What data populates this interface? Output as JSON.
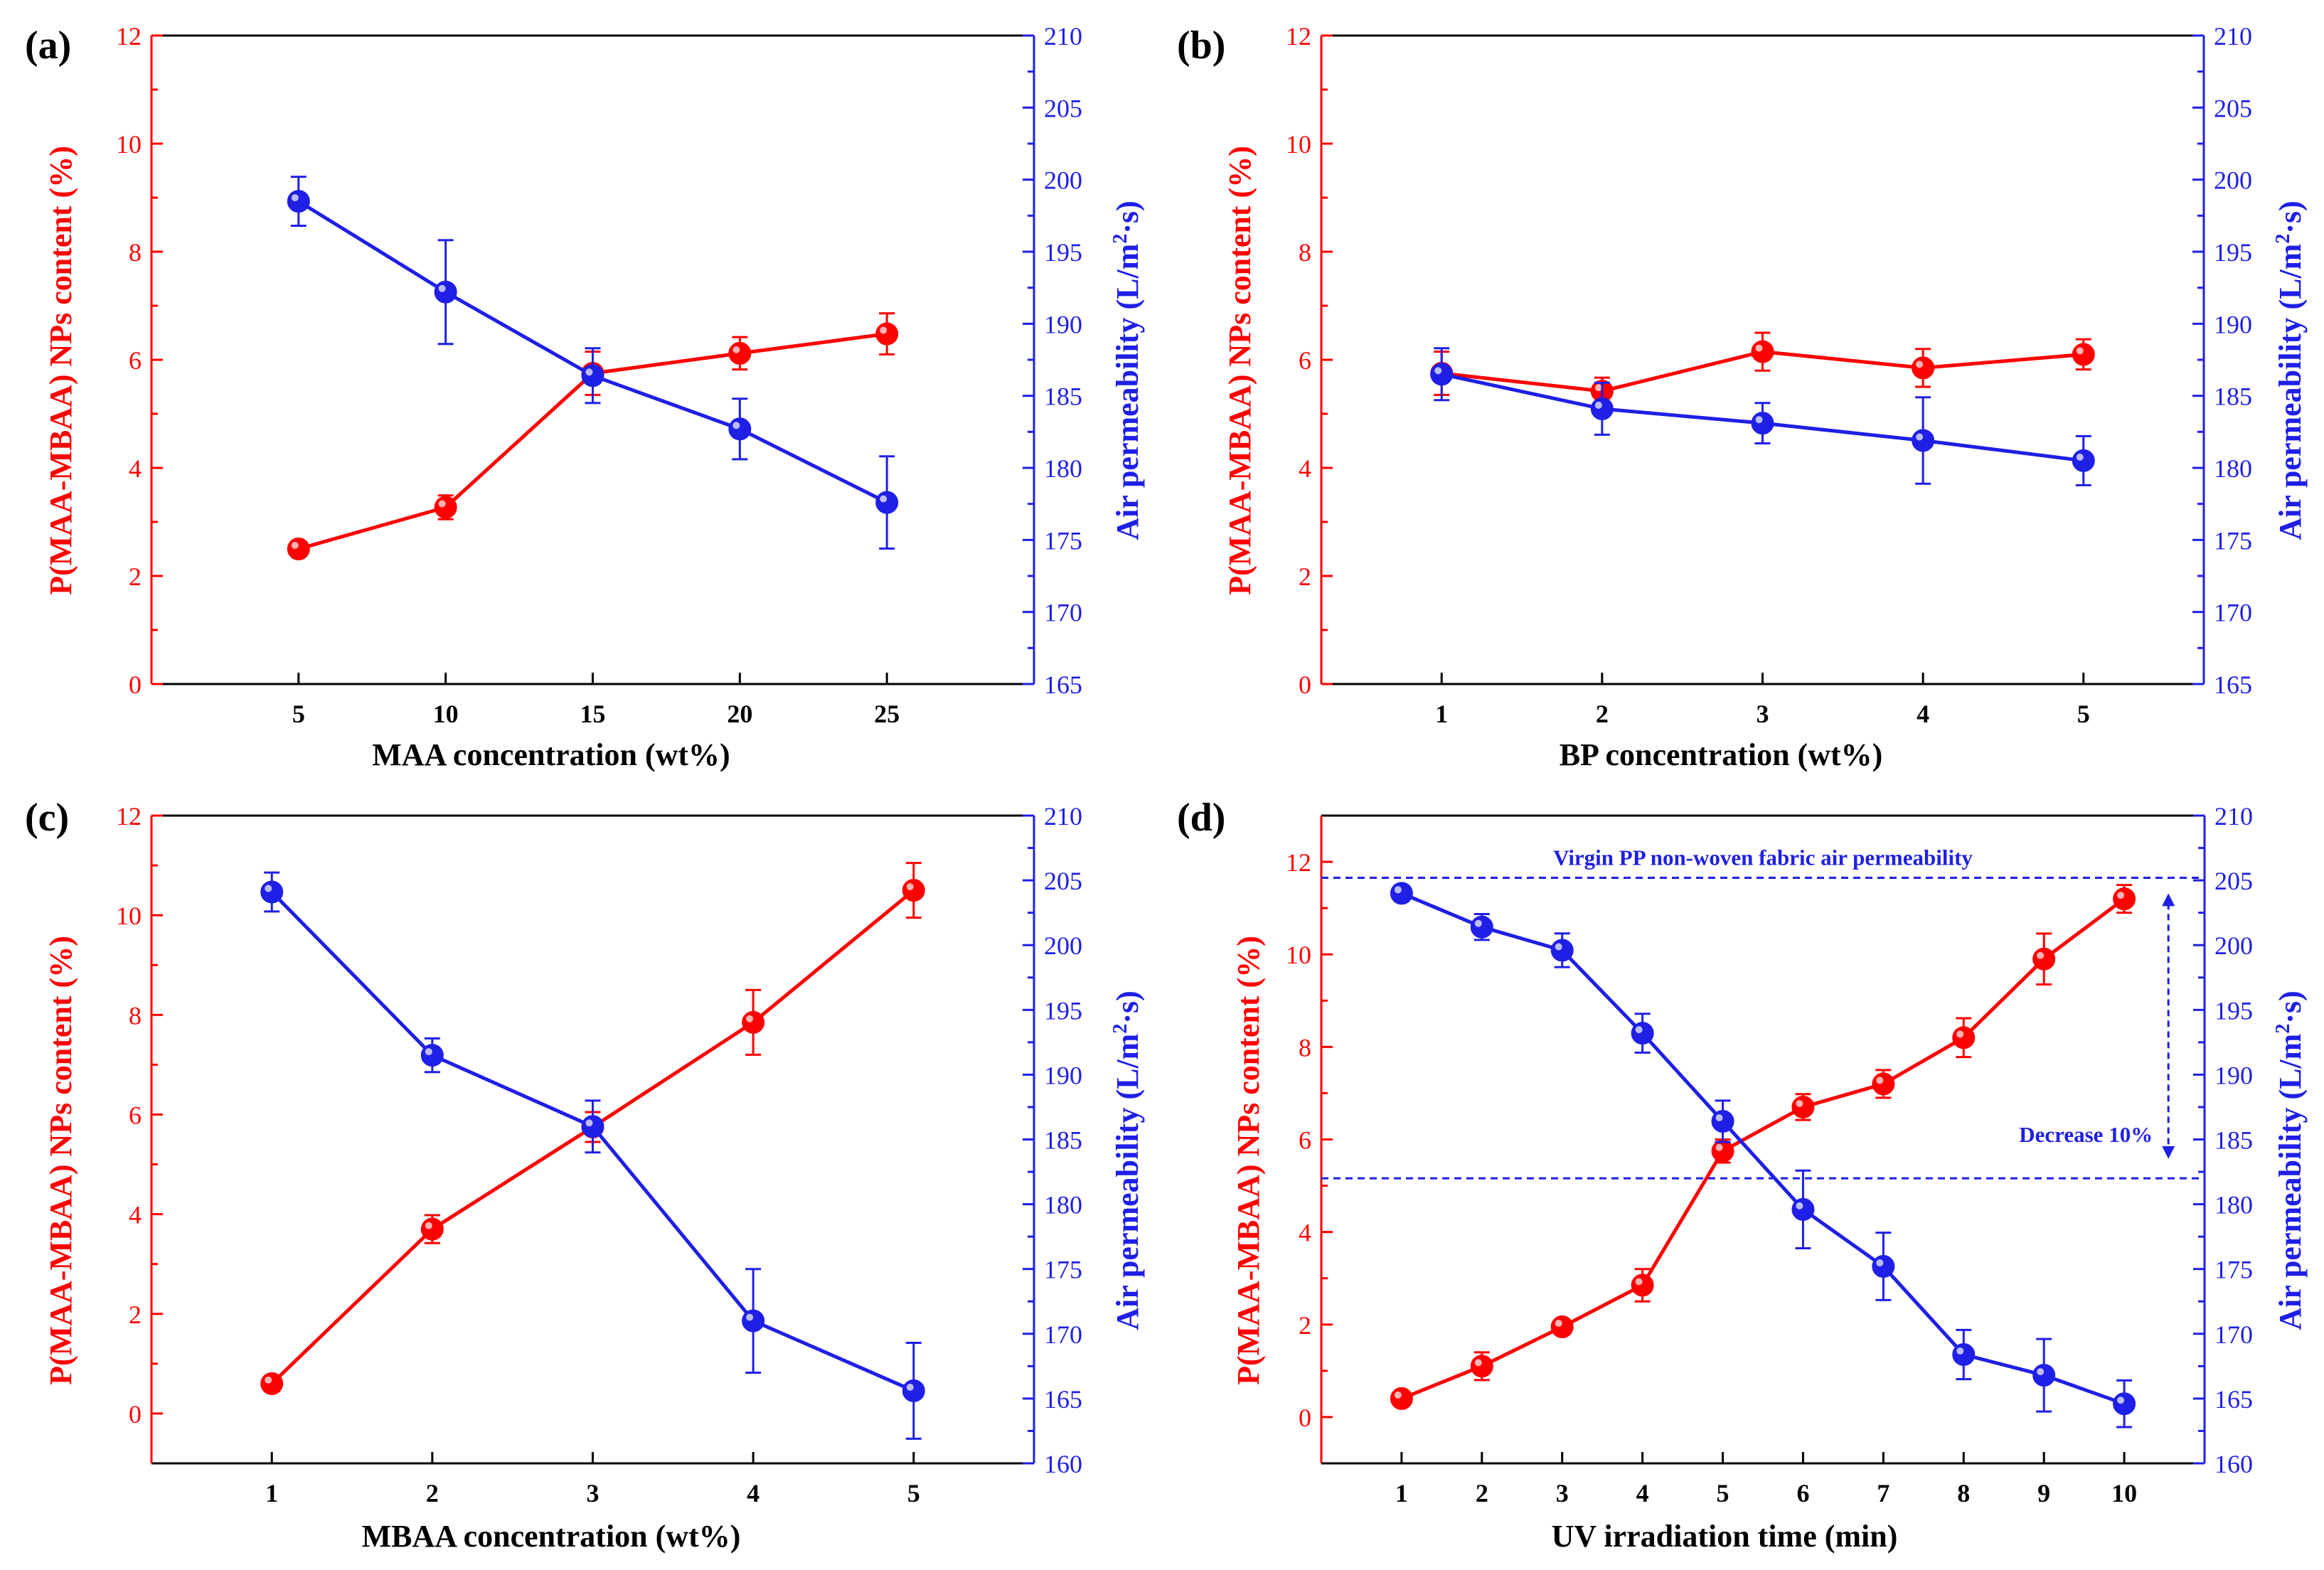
{
  "colors": {
    "left": "#ff0000",
    "right": "#1f1fe6",
    "axis": "#000000",
    "ref": "#1f1fe6"
  },
  "chart_data": [
    {
      "panel_label": "(a)",
      "type": "line",
      "xlabel": "MAA concentration (wt%)",
      "ylabel_left": "P(MAA-MBAA) NPs content (%)",
      "ylabel_right_parts": [
        "Air permeability  (L/m",
        "2",
        "·s)"
      ],
      "x": [
        5,
        10,
        15,
        20,
        25
      ],
      "xlim": [
        0,
        30
      ],
      "xticks": [
        5,
        10,
        15,
        20,
        25
      ],
      "ylim_left": [
        0,
        12
      ],
      "yticks_left": [
        0,
        2,
        4,
        6,
        8,
        10,
        12
      ],
      "ylim_right": [
        165,
        210
      ],
      "yticks_right": [
        165,
        170,
        175,
        180,
        185,
        190,
        195,
        200,
        205,
        210
      ],
      "series": [
        {
          "name": "P(MAA-MBAA) NPs content",
          "axis": "left",
          "values": [
            2.5,
            3.27,
            5.75,
            6.12,
            6.48
          ],
          "errors": [
            0.06,
            0.22,
            0.4,
            0.3,
            0.38
          ]
        },
        {
          "name": "Air permeability",
          "axis": "right",
          "values": [
            198.5,
            192.2,
            186.4,
            182.7,
            177.6
          ],
          "errors": [
            1.7,
            3.6,
            1.9,
            2.1,
            3.2
          ]
        }
      ],
      "reference_lines": [],
      "annotations": []
    },
    {
      "panel_label": "(b)",
      "type": "line",
      "xlabel": "BP concentration (wt%)",
      "ylabel_left": "P(MAA-MBAA) NPs content (%)",
      "ylabel_right_parts": [
        "Air permeability  (L/m",
        "2",
        "·s)"
      ],
      "x": [
        1,
        2,
        3,
        4,
        5
      ],
      "xlim": [
        0.25,
        5.75
      ],
      "xticks": [
        1,
        2,
        3,
        4,
        5
      ],
      "ylim_left": [
        0,
        12
      ],
      "yticks_left": [
        0,
        2,
        4,
        6,
        8,
        10,
        12
      ],
      "ylim_right": [
        165,
        210
      ],
      "yticks_right": [
        165,
        170,
        175,
        180,
        185,
        190,
        195,
        200,
        205,
        210
      ],
      "series": [
        {
          "name": "P(MAA-MBAA) NPs content",
          "axis": "left",
          "values": [
            5.75,
            5.42,
            6.15,
            5.85,
            6.1
          ],
          "errors": [
            0.4,
            0.25,
            0.35,
            0.35,
            0.28
          ]
        },
        {
          "name": "Air permeability",
          "axis": "right",
          "values": [
            186.5,
            184.1,
            183.1,
            181.9,
            180.5
          ],
          "errors": [
            1.8,
            1.8,
            1.4,
            3.0,
            1.7
          ]
        }
      ],
      "reference_lines": [],
      "annotations": []
    },
    {
      "panel_label": "(c)",
      "type": "line",
      "xlabel": "MBAA concentration (wt%)",
      "ylabel_left": "P(MAA-MBAA) NPs content (%)",
      "ylabel_right_parts": [
        "Air permeability  (L/m",
        "2",
        "·s)"
      ],
      "x": [
        1,
        2,
        3,
        4,
        5
      ],
      "xlim": [
        0.25,
        5.75
      ],
      "xticks": [
        1,
        2,
        3,
        4,
        5
      ],
      "ylim_left": [
        -1,
        12
      ],
      "yticks_left": [
        0,
        2,
        4,
        6,
        8,
        10,
        12
      ],
      "ylim_right": [
        160,
        210
      ],
      "yticks_right": [
        160,
        165,
        170,
        175,
        180,
        185,
        190,
        195,
        200,
        205,
        210
      ],
      "series": [
        {
          "name": "P(MAA-MBAA) NPs content",
          "axis": "left",
          "values": [
            0.6,
            3.7,
            5.75,
            7.85,
            10.5
          ],
          "errors": [
            0.05,
            0.28,
            0.3,
            0.65,
            0.55
          ]
        },
        {
          "name": "Air permeability",
          "axis": "right",
          "values": [
            204.1,
            191.5,
            186.0,
            171.0,
            165.6
          ],
          "errors": [
            1.5,
            1.3,
            2.0,
            4.0,
            3.7
          ]
        }
      ],
      "reference_lines": [],
      "annotations": []
    },
    {
      "panel_label": "(d)",
      "type": "line",
      "xlabel": "UV irradiation time (min)",
      "ylabel_left": "P(MAA-MBAA) NPs content (%)",
      "ylabel_right_parts": [
        "Air permeability  (L/m",
        "2",
        "·s)"
      ],
      "x": [
        1,
        2,
        3,
        4,
        5,
        6,
        7,
        8,
        9,
        10
      ],
      "xlim": [
        0,
        11
      ],
      "xticks": [
        1,
        2,
        3,
        4,
        5,
        6,
        7,
        8,
        9,
        10
      ],
      "ylim_left": [
        -1,
        13
      ],
      "yticks_left": [
        0,
        2,
        4,
        6,
        8,
        10,
        12
      ],
      "ylim_right": [
        160,
        210
      ],
      "yticks_right": [
        160,
        165,
        170,
        175,
        180,
        185,
        190,
        195,
        200,
        205,
        210
      ],
      "series": [
        {
          "name": "P(MAA-MBAA) NPs content",
          "axis": "left",
          "values": [
            0.4,
            1.1,
            1.95,
            2.85,
            5.75,
            6.7,
            7.2,
            8.2,
            9.9,
            11.2
          ],
          "errors": [
            0.05,
            0.3,
            0.15,
            0.35,
            0.25,
            0.28,
            0.3,
            0.42,
            0.55,
            0.3
          ]
        },
        {
          "name": "Air permeability",
          "axis": "right",
          "values": [
            204.0,
            201.4,
            199.6,
            193.2,
            186.4,
            179.6,
            175.2,
            168.4,
            166.8,
            164.6
          ],
          "errors": [
            0.6,
            1.0,
            1.3,
            1.5,
            1.6,
            3.0,
            2.6,
            1.9,
            2.8,
            1.8
          ]
        }
      ],
      "reference_lines": [
        {
          "axis": "right",
          "value": 205.2,
          "label": "Virgin PP non-woven fabric air permeability"
        },
        {
          "axis": "right",
          "value": 182.0,
          "label": ""
        }
      ],
      "annotations": [
        {
          "text": "Decrease 10%",
          "type": "double-arrow",
          "axis": "right",
          "x": 10.55,
          "from": 204.0,
          "to": 183.5
        }
      ]
    }
  ]
}
